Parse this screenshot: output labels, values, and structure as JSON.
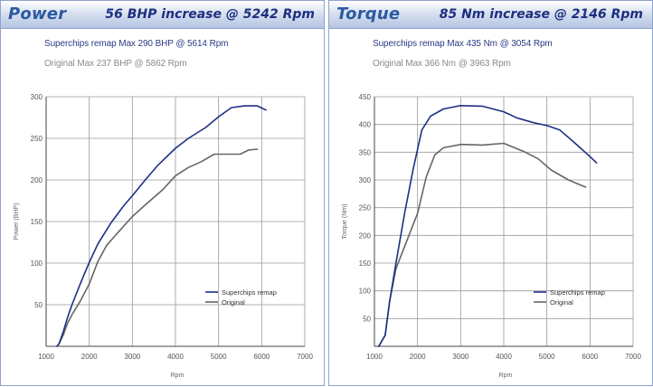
{
  "colors": {
    "remap": "#1f2f85",
    "original": "#666666",
    "grid": "#9a9a9a",
    "axis": "#444444"
  },
  "panels": [
    {
      "title": "Power",
      "increase": "56 BHP increase @ 5242 Rpm",
      "remap_max": "Superchips remap Max 290 BHP @ 5614 Rpm",
      "original_max": "Original Max 237 BHP @ 5862 Rpm"
    },
    {
      "title": "Torque",
      "increase": "85 Nm increase @ 2146 Rpm",
      "remap_max": "Superchips remap Max 435 Nm @ 3054 Rpm",
      "original_max": "Original Max 366 Nm @ 3963 Rpm"
    }
  ],
  "chart_data": [
    {
      "type": "line",
      "title": "",
      "xlabel": "Rpm",
      "ylabel": "Power (BHP)",
      "xlim": [
        1000,
        7000
      ],
      "ylim": [
        0,
        300
      ],
      "xticks": [
        1000,
        2000,
        3000,
        4000,
        5000,
        6000,
        7000
      ],
      "yticks": [
        50,
        100,
        150,
        200,
        250,
        300
      ],
      "grid": true,
      "legend_position": "bottom-right",
      "series": [
        {
          "name": "Superchips remap",
          "color": "#1f2f85",
          "x": [
            1250,
            1300,
            1400,
            1500,
            1600,
            1800,
            2000,
            2200,
            2500,
            2800,
            3000,
            3300,
            3600,
            4000,
            4300,
            4700,
            5000,
            5300,
            5600,
            5900,
            6100
          ],
          "y": [
            0,
            3,
            18,
            35,
            50,
            76,
            101,
            123,
            148,
            169,
            181,
            200,
            218,
            238,
            250,
            263,
            276,
            287,
            289,
            289,
            284
          ]
        },
        {
          "name": "Original",
          "color": "#666666",
          "x": [
            1250,
            1300,
            1400,
            1500,
            1600,
            1800,
            2000,
            2200,
            2400,
            2600,
            3000,
            3300,
            3700,
            4000,
            4300,
            4600,
            4900,
            5200,
            5500,
            5700,
            5900
          ],
          "y": [
            0,
            3,
            14,
            28,
            38,
            55,
            75,
            102,
            121,
            133,
            156,
            170,
            188,
            205,
            215,
            222,
            231,
            231,
            231,
            236,
            237
          ]
        }
      ]
    },
    {
      "type": "line",
      "title": "",
      "xlabel": "Rpm",
      "ylabel": "Torque (Nm)",
      "xlim": [
        1000,
        7000
      ],
      "ylim": [
        0,
        450
      ],
      "xticks": [
        1000,
        2000,
        3000,
        4000,
        5000,
        6000,
        7000
      ],
      "yticks": [
        50,
        100,
        150,
        200,
        250,
        300,
        350,
        400,
        450
      ],
      "grid": true,
      "legend_position": "bottom-right",
      "series": [
        {
          "name": "Superchips remap",
          "color": "#1f2f85",
          "x": [
            1100,
            1250,
            1350,
            1500,
            1700,
            1900,
            2100,
            2300,
            2600,
            3000,
            3500,
            4000,
            4300,
            4700,
            5000,
            5300,
            5600,
            6000,
            6150
          ],
          "y": [
            0,
            20,
            80,
            150,
            240,
            320,
            390,
            415,
            428,
            434,
            433,
            423,
            412,
            403,
            398,
            390,
            370,
            342,
            331
          ]
        },
        {
          "name": "Original",
          "color": "#666666",
          "x": [
            1100,
            1250,
            1350,
            1500,
            1700,
            2000,
            2200,
            2400,
            2600,
            3000,
            3500,
            4000,
            4500,
            4800,
            5100,
            5500,
            5900
          ],
          "y": [
            0,
            20,
            80,
            140,
            180,
            240,
            305,
            345,
            358,
            364,
            363,
            366,
            350,
            338,
            318,
            300,
            287
          ]
        }
      ]
    }
  ]
}
